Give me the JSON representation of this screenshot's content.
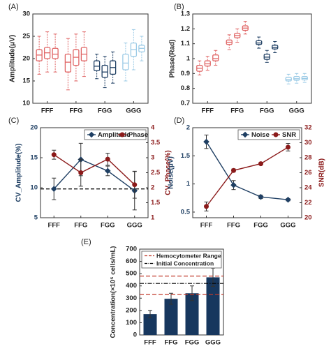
{
  "chart_data": [
    {
      "type": "box",
      "panel_label": "(A)",
      "ylabel": "Amplitude(μV)",
      "ylim": [
        10,
        30
      ],
      "yticks": [
        10,
        15,
        20,
        25,
        30
      ],
      "categories": [
        "FFF",
        "FFG",
        "FGG",
        "GGG"
      ],
      "grid": false,
      "boxes": [
        {
          "category": "FFF",
          "color": "#e06666",
          "min": 16.5,
          "q1": 19.5,
          "median": 20.8,
          "q3": 22.0,
          "max": 25.0
        },
        {
          "category": "FFF",
          "color": "#e06666",
          "min": 17.0,
          "q1": 20.0,
          "median": 21.3,
          "q3": 22.5,
          "max": 26.0
        },
        {
          "category": "FFF",
          "color": "#e06666",
          "min": 17.0,
          "q1": 20.0,
          "median": 21.0,
          "q3": 22.3,
          "max": 25.5
        },
        {
          "category": "FFG",
          "color": "#e06666",
          "min": 13.0,
          "q1": 17.0,
          "median": 19.2,
          "q3": 21.0,
          "max": 24.5
        },
        {
          "category": "FFG",
          "color": "#e06666",
          "min": 15.0,
          "q1": 18.5,
          "median": 20.3,
          "q3": 22.0,
          "max": 25.5
        },
        {
          "category": "FFG",
          "color": "#e06666",
          "min": 16.0,
          "q1": 19.5,
          "median": 21.0,
          "q3": 22.5,
          "max": 26.0
        },
        {
          "category": "FGG",
          "color": "#1f3f63",
          "min": 15.5,
          "q1": 17.3,
          "median": 18.3,
          "q3": 19.5,
          "max": 21.0
        },
        {
          "category": "FGG",
          "color": "#1f3f63",
          "min": 13.5,
          "q1": 15.8,
          "median": 17.0,
          "q3": 18.5,
          "max": 20.5
        },
        {
          "category": "FGG",
          "color": "#1f3f63",
          "min": 14.5,
          "q1": 16.5,
          "median": 18.0,
          "q3": 19.5,
          "max": 21.5
        },
        {
          "category": "GGG",
          "color": "#9ccbe6",
          "min": 15.0,
          "q1": 17.5,
          "median": 19.0,
          "q3": 21.0,
          "max": 23.5
        },
        {
          "category": "GGG",
          "color": "#9ccbe6",
          "min": 17.5,
          "q1": 20.5,
          "median": 22.0,
          "q3": 23.5,
          "max": 26.5
        },
        {
          "category": "GGG",
          "color": "#9ccbe6",
          "min": 19.5,
          "q1": 21.5,
          "median": 22.3,
          "q3": 23.0,
          "max": 25.0
        }
      ]
    },
    {
      "type": "box",
      "panel_label": "(B)",
      "ylabel": "Phase(Rad)",
      "ylim": [
        0.7,
        1.3
      ],
      "yticks": [
        0.7,
        0.8,
        0.9,
        1.0,
        1.1,
        1.2,
        1.3
      ],
      "ytick_labels": [
        "0.7",
        "0.8",
        "0.9",
        "1",
        "1.1",
        "1.2",
        "1.3"
      ],
      "categories": [
        "FFF",
        "FFG",
        "FGG",
        "GGG"
      ],
      "grid": false,
      "boxes": [
        {
          "category": "FFF",
          "color": "#e06666",
          "min": 0.89,
          "q1": 0.915,
          "median": 0.935,
          "q3": 0.955,
          "max": 0.985
        },
        {
          "category": "FFF",
          "color": "#e06666",
          "min": 0.92,
          "q1": 0.95,
          "median": 0.965,
          "q3": 0.985,
          "max": 1.015
        },
        {
          "category": "FFF",
          "color": "#e06666",
          "min": 0.955,
          "q1": 0.985,
          "median": 1.0,
          "q3": 1.025,
          "max": 1.055
        },
        {
          "category": "FFG",
          "color": "#e06666",
          "min": 1.06,
          "q1": 1.095,
          "median": 1.11,
          "q3": 1.125,
          "max": 1.16
        },
        {
          "category": "FFG",
          "color": "#e06666",
          "min": 1.11,
          "q1": 1.14,
          "median": 1.155,
          "q3": 1.17,
          "max": 1.2
        },
        {
          "category": "FFG",
          "color": "#e06666",
          "min": 1.165,
          "q1": 1.19,
          "median": 1.205,
          "q3": 1.22,
          "max": 1.25
        },
        {
          "category": "FGG",
          "color": "#1f3f63",
          "min": 1.07,
          "q1": 1.095,
          "median": 1.105,
          "q3": 1.12,
          "max": 1.145
        },
        {
          "category": "FGG",
          "color": "#1f3f63",
          "min": 0.975,
          "q1": 0.995,
          "median": 1.01,
          "q3": 1.03,
          "max": 1.055
        },
        {
          "category": "FGG",
          "color": "#1f3f63",
          "min": 1.04,
          "q1": 1.065,
          "median": 1.075,
          "q3": 1.09,
          "max": 1.115
        },
        {
          "category": "GGG",
          "color": "#9ccbe6",
          "min": 0.83,
          "q1": 0.85,
          "median": 0.86,
          "q3": 0.875,
          "max": 0.895
        },
        {
          "category": "GGG",
          "color": "#9ccbe6",
          "min": 0.835,
          "q1": 0.855,
          "median": 0.865,
          "q3": 0.88,
          "max": 0.9
        },
        {
          "category": "GGG",
          "color": "#9ccbe6",
          "min": 0.84,
          "q1": 0.857,
          "median": 0.867,
          "q3": 0.88,
          "max": 0.9
        }
      ]
    },
    {
      "type": "line",
      "panel_label": "(C)",
      "ylabel": "CV_Amplitude(%)",
      "y2label": "CV_Phase(%)",
      "ylim": [
        5,
        20
      ],
      "yticks": [
        5,
        10,
        15,
        20
      ],
      "y2lim": [
        1,
        4
      ],
      "y2ticks": [
        1,
        1.5,
        2,
        2.5,
        3,
        3.5,
        4
      ],
      "y2tick_labels": [
        "1",
        "1.5",
        "2",
        "2.5",
        "3",
        "3.5",
        "4"
      ],
      "x": [
        "FFF",
        "FFG",
        "FGG",
        "GGG"
      ],
      "legend_position": "top-right",
      "grid": false,
      "reference_line": {
        "y": 9.8,
        "style": "dashed",
        "color": "#000000"
      },
      "series": [
        {
          "name": "Amplitude",
          "axis": "left",
          "color": "#1f3f63",
          "marker": "diamond",
          "values": [
            9.8,
            14.7,
            12.8,
            9.5
          ],
          "errors": [
            1.8,
            2.7,
            0.8,
            3.2
          ]
        },
        {
          "name": "Phase",
          "axis": "right",
          "color": "#8b1a1a",
          "marker": "circle",
          "values": [
            3.1,
            2.5,
            2.95,
            2.1
          ],
          "errors": [
            0.15,
            0.45,
            0.2,
            0.45
          ]
        }
      ]
    },
    {
      "type": "line",
      "panel_label": "(D)",
      "ylabel": "Noise(μV)",
      "y2label": "SNR(dB)",
      "ylim": [
        0.4,
        2.0
      ],
      "yticks": [
        0.5,
        1.0,
        1.5,
        2.0
      ],
      "ytick_labels": [
        "0.5",
        "1",
        "1.5",
        "2"
      ],
      "y2lim": [
        20,
        32
      ],
      "y2ticks": [
        20,
        22,
        24,
        26,
        28,
        30,
        32
      ],
      "x": [
        "FFF",
        "FFG",
        "FGG",
        "GGG"
      ],
      "legend_position": "top-right",
      "grid": false,
      "series": [
        {
          "name": "Noise",
          "axis": "left",
          "color": "#1f3f63",
          "marker": "diamond",
          "values": [
            1.75,
            0.98,
            0.77,
            0.72
          ],
          "errors": [
            0.12,
            0.08,
            0.03,
            0.02
          ]
        },
        {
          "name": "SNR",
          "axis": "right",
          "color": "#8b1a1a",
          "marker": "circle",
          "values": [
            21.5,
            26.3,
            27.2,
            29.4
          ],
          "errors": [
            0.6,
            0.2,
            0.15,
            0.5
          ]
        }
      ]
    },
    {
      "type": "bar",
      "panel_label": "(E)",
      "ylabel": "Concentration(×10⁵ cells/mL)",
      "ylim": [
        0,
        700
      ],
      "yticks": [
        0,
        100,
        200,
        300,
        400,
        500,
        600,
        700
      ],
      "categories": [
        "FFF",
        "FFG",
        "FGG",
        "GGG"
      ],
      "values": [
        170,
        295,
        340,
        470
      ],
      "errors": [
        30,
        45,
        60,
        75
      ],
      "bar_color": "#17375e",
      "legend_position": "top",
      "grid": false,
      "reference_lines": [
        {
          "name": "Hemocytometer Range",
          "values": [
            330,
            480
          ],
          "style": "dashed",
          "color": "#c0392b"
        },
        {
          "name": "Initial Concentration",
          "values": [
            420
          ],
          "style": "dash-dot",
          "color": "#000000"
        }
      ]
    }
  ]
}
